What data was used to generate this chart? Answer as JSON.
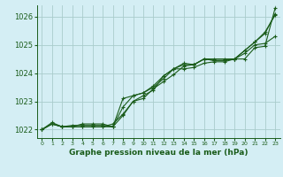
{
  "title": "Graphe pression niveau de la mer (hPa)",
  "background_color": "#d4eef4",
  "grid_color": "#aacccc",
  "line_color": "#1a5c1a",
  "xlim": [
    -0.5,
    23.5
  ],
  "ylim": [
    1021.7,
    1026.4
  ],
  "yticks": [
    1022,
    1023,
    1024,
    1025,
    1026
  ],
  "xticks": [
    0,
    1,
    2,
    3,
    4,
    5,
    6,
    7,
    8,
    9,
    10,
    11,
    12,
    13,
    14,
    15,
    16,
    17,
    18,
    19,
    20,
    21,
    22,
    23
  ],
  "xlabel_fontsize": 6.5,
  "ytick_fontsize": 6.0,
  "xtick_fontsize": 4.5,
  "series": [
    [
      1022.0,
      1022.2,
      1022.1,
      1022.1,
      1022.1,
      1022.1,
      1022.1,
      1022.1,
      1022.8,
      1023.2,
      1023.3,
      1023.5,
      1023.8,
      1024.15,
      1024.35,
      1024.3,
      1024.5,
      1024.5,
      1024.5,
      1024.5,
      1024.8,
      1025.1,
      1025.4,
      1026.1
    ],
    [
      1022.0,
      1022.2,
      1022.1,
      1022.1,
      1022.1,
      1022.1,
      1022.1,
      1022.2,
      1022.55,
      1023.0,
      1023.1,
      1023.45,
      1023.7,
      1023.95,
      1024.25,
      1024.3,
      1024.5,
      1024.45,
      1024.45,
      1024.5,
      1024.7,
      1025.0,
      1025.05,
      1025.3
    ],
    [
      1022.0,
      1022.2,
      1022.1,
      1022.15,
      1022.15,
      1022.15,
      1022.15,
      1022.1,
      1023.1,
      1023.2,
      1023.3,
      1023.55,
      1023.9,
      1024.15,
      1024.3,
      1024.3,
      1024.5,
      1024.45,
      1024.45,
      1024.5,
      1024.8,
      1025.1,
      1025.45,
      1026.05
    ],
    [
      1022.0,
      1022.25,
      1022.1,
      1022.1,
      1022.2,
      1022.2,
      1022.2,
      1022.1,
      1022.5,
      1023.0,
      1023.2,
      1023.4,
      1023.9,
      1024.15,
      1024.15,
      1024.2,
      1024.35,
      1024.4,
      1024.4,
      1024.5,
      1024.5,
      1024.9,
      1024.95,
      1026.3
    ]
  ]
}
